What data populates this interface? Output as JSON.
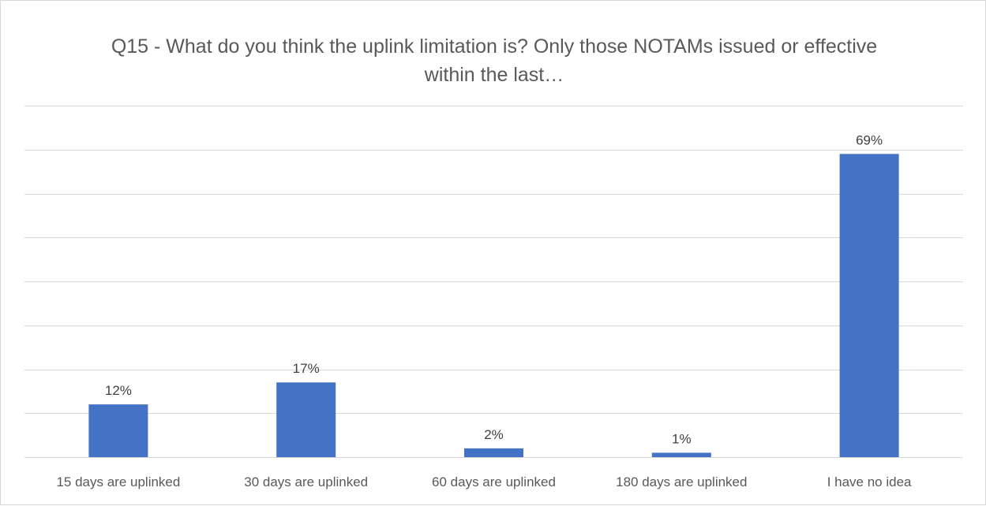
{
  "chart_data": {
    "type": "bar",
    "title": "Q15 - What do you think the uplink limitation is? Only those NOTAMs issued or effective within the last…",
    "categories": [
      "15 days are uplinked",
      "30 days are uplinked",
      "60 days are uplinked",
      "180 days are uplinked",
      "I have no idea"
    ],
    "values": [
      12,
      17,
      2,
      1,
      69
    ],
    "data_labels": [
      "12%",
      "17%",
      "2%",
      "1%",
      "69%"
    ],
    "ylim": [
      0,
      80
    ],
    "y_gridline_step": 10,
    "grid": true,
    "legend": "none",
    "bar_color": "#4472C4",
    "gridline_color": "#d9d9d9"
  }
}
